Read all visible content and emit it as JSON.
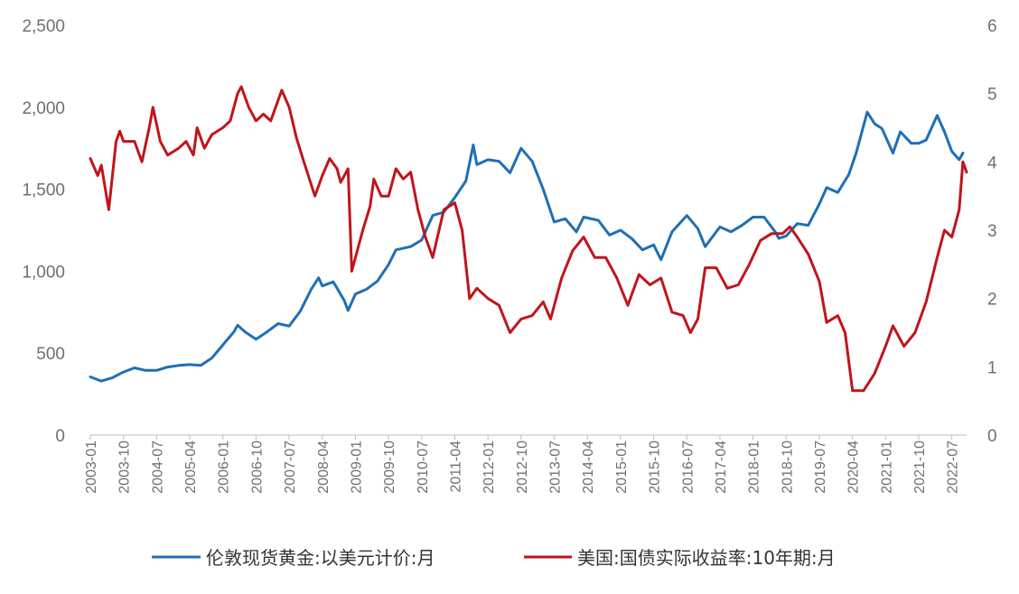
{
  "chart_data": {
    "type": "line",
    "left_axis": {
      "ylim": [
        0,
        2500
      ],
      "ticks": [
        "0",
        "500",
        "1,000",
        "1,500",
        "2,000",
        "2,500"
      ]
    },
    "right_axis": {
      "ylim": [
        0,
        6
      ],
      "ticks": [
        "0",
        "1",
        "2",
        "3",
        "4",
        "5",
        "6"
      ]
    },
    "x_tick_labels": [
      "2003-01",
      "2003-10",
      "2004-07",
      "2005-04",
      "2006-01",
      "2006-10",
      "2007-07",
      "2008-04",
      "2009-01",
      "2009-10",
      "2010-07",
      "2011-04",
      "2012-01",
      "2012-10",
      "2013-07",
      "2014-04",
      "2015-01",
      "2015-10",
      "2016-07",
      "2017-04",
      "2018-01",
      "2018-10",
      "2019-07",
      "2020-04",
      "2021-01",
      "2021-10",
      "2022-07"
    ],
    "grid": false,
    "legend_position": "bottom",
    "series": [
      {
        "name": "伦敦现货黄金:以美元计价:月",
        "axis": "left",
        "color": "#1f6fb5",
        "points": [
          [
            "2003-01",
            355
          ],
          [
            "2003-04",
            330
          ],
          [
            "2003-07",
            350
          ],
          [
            "2003-10",
            385
          ],
          [
            "2004-01",
            410
          ],
          [
            "2004-04",
            395
          ],
          [
            "2004-07",
            395
          ],
          [
            "2004-10",
            415
          ],
          [
            "2005-01",
            425
          ],
          [
            "2005-04",
            430
          ],
          [
            "2005-07",
            425
          ],
          [
            "2005-10",
            470
          ],
          [
            "2006-01",
            550
          ],
          [
            "2006-04",
            630
          ],
          [
            "2006-05",
            670
          ],
          [
            "2006-07",
            630
          ],
          [
            "2006-10",
            585
          ],
          [
            "2007-01",
            630
          ],
          [
            "2007-04",
            680
          ],
          [
            "2007-07",
            665
          ],
          [
            "2007-10",
            755
          ],
          [
            "2008-01",
            890
          ],
          [
            "2008-03",
            960
          ],
          [
            "2008-04",
            910
          ],
          [
            "2008-07",
            935
          ],
          [
            "2008-10",
            820
          ],
          [
            "2008-11",
            760
          ],
          [
            "2009-01",
            860
          ],
          [
            "2009-04",
            890
          ],
          [
            "2009-07",
            940
          ],
          [
            "2009-10",
            1040
          ],
          [
            "2009-12",
            1130
          ],
          [
            "2010-04",
            1150
          ],
          [
            "2010-07",
            1190
          ],
          [
            "2010-10",
            1340
          ],
          [
            "2011-01",
            1360
          ],
          [
            "2011-04",
            1450
          ],
          [
            "2011-07",
            1550
          ],
          [
            "2011-09",
            1770
          ],
          [
            "2011-10",
            1650
          ],
          [
            "2012-01",
            1680
          ],
          [
            "2012-04",
            1670
          ],
          [
            "2012-07",
            1600
          ],
          [
            "2012-10",
            1750
          ],
          [
            "2013-01",
            1670
          ],
          [
            "2013-04",
            1500
          ],
          [
            "2013-07",
            1300
          ],
          [
            "2013-10",
            1320
          ],
          [
            "2014-01",
            1240
          ],
          [
            "2014-03",
            1330
          ],
          [
            "2014-07",
            1310
          ],
          [
            "2014-10",
            1220
          ],
          [
            "2015-01",
            1250
          ],
          [
            "2015-04",
            1200
          ],
          [
            "2015-07",
            1130
          ],
          [
            "2015-10",
            1160
          ],
          [
            "2015-12",
            1070
          ],
          [
            "2016-03",
            1240
          ],
          [
            "2016-07",
            1340
          ],
          [
            "2016-10",
            1260
          ],
          [
            "2016-12",
            1150
          ],
          [
            "2017-04",
            1270
          ],
          [
            "2017-07",
            1240
          ],
          [
            "2017-10",
            1280
          ],
          [
            "2018-01",
            1330
          ],
          [
            "2018-04",
            1330
          ],
          [
            "2018-07",
            1240
          ],
          [
            "2018-08",
            1200
          ],
          [
            "2018-10",
            1215
          ],
          [
            "2019-01",
            1290
          ],
          [
            "2019-04",
            1280
          ],
          [
            "2019-07",
            1410
          ],
          [
            "2019-09",
            1510
          ],
          [
            "2019-12",
            1480
          ],
          [
            "2020-03",
            1590
          ],
          [
            "2020-05",
            1720
          ],
          [
            "2020-08",
            1970
          ],
          [
            "2020-10",
            1900
          ],
          [
            "2020-12",
            1870
          ],
          [
            "2021-03",
            1720
          ],
          [
            "2021-05",
            1850
          ],
          [
            "2021-08",
            1780
          ],
          [
            "2021-10",
            1780
          ],
          [
            "2021-12",
            1800
          ],
          [
            "2022-03",
            1950
          ],
          [
            "2022-05",
            1850
          ],
          [
            "2022-07",
            1730
          ],
          [
            "2022-09",
            1680
          ],
          [
            "2022-10",
            1720
          ]
        ]
      },
      {
        "name": "美国:国债实际收益率:10年期:月",
        "axis": "right",
        "color": "#c0151b",
        "points": [
          [
            "2003-01",
            4.05
          ],
          [
            "2003-03",
            3.8
          ],
          [
            "2003-04",
            3.95
          ],
          [
            "2003-06",
            3.3
          ],
          [
            "2003-08",
            4.3
          ],
          [
            "2003-09",
            4.45
          ],
          [
            "2003-10",
            4.3
          ],
          [
            "2004-01",
            4.3
          ],
          [
            "2004-03",
            4.0
          ],
          [
            "2004-05",
            4.5
          ],
          [
            "2004-06",
            4.8
          ],
          [
            "2004-08",
            4.3
          ],
          [
            "2004-10",
            4.1
          ],
          [
            "2005-01",
            4.2
          ],
          [
            "2005-03",
            4.3
          ],
          [
            "2005-05",
            4.1
          ],
          [
            "2005-06",
            4.5
          ],
          [
            "2005-08",
            4.2
          ],
          [
            "2005-10",
            4.4
          ],
          [
            "2006-01",
            4.5
          ],
          [
            "2006-03",
            4.6
          ],
          [
            "2006-05",
            5.0
          ],
          [
            "2006-06",
            5.1
          ],
          [
            "2006-08",
            4.8
          ],
          [
            "2006-10",
            4.6
          ],
          [
            "2006-12",
            4.7
          ],
          [
            "2007-02",
            4.6
          ],
          [
            "2007-05",
            5.05
          ],
          [
            "2007-07",
            4.8
          ],
          [
            "2007-09",
            4.35
          ],
          [
            "2007-11",
            4.0
          ],
          [
            "2008-02",
            3.5
          ],
          [
            "2008-04",
            3.8
          ],
          [
            "2008-06",
            4.05
          ],
          [
            "2008-08",
            3.9
          ],
          [
            "2008-09",
            3.7
          ],
          [
            "2008-11",
            3.9
          ],
          [
            "2008-12",
            2.4
          ],
          [
            "2009-03",
            3.0
          ],
          [
            "2009-05",
            3.35
          ],
          [
            "2009-06",
            3.75
          ],
          [
            "2009-08",
            3.5
          ],
          [
            "2009-10",
            3.5
          ],
          [
            "2009-12",
            3.9
          ],
          [
            "2010-02",
            3.75
          ],
          [
            "2010-04",
            3.85
          ],
          [
            "2010-06",
            3.3
          ],
          [
            "2010-08",
            2.9
          ],
          [
            "2010-10",
            2.6
          ],
          [
            "2011-01",
            3.3
          ],
          [
            "2011-04",
            3.4
          ],
          [
            "2011-06",
            3.0
          ],
          [
            "2011-08",
            2.0
          ],
          [
            "2011-10",
            2.15
          ],
          [
            "2012-01",
            2.0
          ],
          [
            "2012-04",
            1.9
          ],
          [
            "2012-07",
            1.5
          ],
          [
            "2012-10",
            1.7
          ],
          [
            "2013-01",
            1.75
          ],
          [
            "2013-04",
            1.95
          ],
          [
            "2013-06",
            1.7
          ],
          [
            "2013-09",
            2.3
          ],
          [
            "2013-12",
            2.7
          ],
          [
            "2014-03",
            2.9
          ],
          [
            "2014-06",
            2.6
          ],
          [
            "2014-09",
            2.6
          ],
          [
            "2014-12",
            2.3
          ],
          [
            "2015-03",
            1.9
          ],
          [
            "2015-06",
            2.35
          ],
          [
            "2015-09",
            2.2
          ],
          [
            "2015-12",
            2.3
          ],
          [
            "2016-03",
            1.8
          ],
          [
            "2016-06",
            1.75
          ],
          [
            "2016-08",
            1.5
          ],
          [
            "2016-10",
            1.7
          ],
          [
            "2016-12",
            2.45
          ],
          [
            "2017-03",
            2.45
          ],
          [
            "2017-06",
            2.15
          ],
          [
            "2017-09",
            2.2
          ],
          [
            "2017-12",
            2.5
          ],
          [
            "2018-03",
            2.85
          ],
          [
            "2018-06",
            2.95
          ],
          [
            "2018-09",
            2.95
          ],
          [
            "2018-11",
            3.05
          ],
          [
            "2019-01",
            2.9
          ],
          [
            "2019-04",
            2.65
          ],
          [
            "2019-07",
            2.25
          ],
          [
            "2019-09",
            1.65
          ],
          [
            "2019-12",
            1.75
          ],
          [
            "2020-02",
            1.5
          ],
          [
            "2020-04",
            0.65
          ],
          [
            "2020-07",
            0.65
          ],
          [
            "2020-10",
            0.9
          ],
          [
            "2021-01",
            1.3
          ],
          [
            "2021-03",
            1.6
          ],
          [
            "2021-06",
            1.3
          ],
          [
            "2021-09",
            1.5
          ],
          [
            "2021-12",
            1.95
          ],
          [
            "2022-03",
            2.6
          ],
          [
            "2022-05",
            3.0
          ],
          [
            "2022-07",
            2.9
          ],
          [
            "2022-09",
            3.3
          ],
          [
            "2022-10",
            4.0
          ],
          [
            "2022-11",
            3.85
          ]
        ]
      }
    ]
  }
}
